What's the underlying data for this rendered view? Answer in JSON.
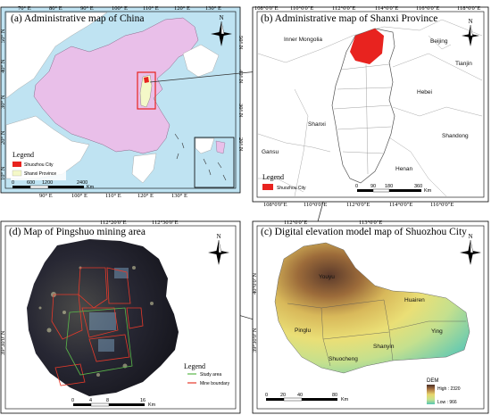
{
  "panels": {
    "a": {
      "title": "(a) Administrative map of China",
      "top_ticks": [
        "70° E",
        "80° E",
        "90° E",
        "100° E",
        "110° E",
        "120° E",
        "130° E"
      ],
      "bottom_ticks": [
        "90° E",
        "100° E",
        "110° E",
        "120° E",
        "130° E"
      ],
      "left_ticks": [
        "50° N",
        "40° N",
        "30° N",
        "20° N",
        "10° N"
      ],
      "right_ticks": [
        "50° N",
        "40° N",
        "30° N",
        "20° N"
      ],
      "legend_title": "Legend",
      "legend_items": [
        "Shuozhou City",
        "Shanxi Province"
      ],
      "scale": [
        "0",
        "600",
        "1200",
        "2400",
        "Km"
      ],
      "north": "N"
    },
    "b": {
      "title": "(b) Administrative map of Shanxi Province",
      "top_ticks": [
        "108°0'0\"E",
        "110°0'0\"E",
        "112°0'0\"E",
        "114°0'0\"E",
        "116°0'0\"E",
        "118°0'0\"E"
      ],
      "bottom_ticks": [
        "108°0'0\"E",
        "110°0'0\"E",
        "112°0'0\"E",
        "114°0'0\"E",
        "116°0'0\"E"
      ],
      "regions": [
        "Inner Mongolia",
        "Beijing",
        "Tianjin",
        "Hebei",
        "Shanxi",
        "Shandong",
        "Gansu",
        "Henan"
      ],
      "legend_title": "Legend",
      "legend_items": [
        "Shuozhou City"
      ],
      "scale": [
        "0",
        "90",
        "180",
        "360",
        "Km"
      ],
      "north": "N"
    },
    "c": {
      "title": "(c) Digital elevation model map of Shuozhou City",
      "top_ticks": [
        "112°0'0\"E",
        "113°0'0\"E"
      ],
      "left_ticks": [
        "40°0'0\"N",
        "39°30'0\"N"
      ],
      "places": [
        "Youyu",
        "Pinglu",
        "Shuocheng",
        "Shanyin",
        "Huairen",
        "Ying"
      ],
      "dem_title": "DEM",
      "dem_high": "High : 2320",
      "dem_low": "Low : 966",
      "scale": [
        "0",
        "20",
        "40",
        "80",
        "Km"
      ],
      "north": "N"
    },
    "d": {
      "title": "(d) Map of Pingshuo mining area",
      "top_ticks": [
        "112°20'0\"E",
        "112°30'0\"E"
      ],
      "left_ticks": [
        "39°30'0\"N"
      ],
      "legend_title": "Legend",
      "legend_items": [
        "Study area",
        "Mine boundary"
      ],
      "scale": [
        "0",
        "4",
        "8",
        "16",
        "Km"
      ],
      "north": "N"
    }
  },
  "colors": {
    "china_fill": "#e9bfe9",
    "ocean": "#bfe3f2",
    "highlight_red": "#e8231f",
    "shanxi_yellow": "#f4f8c8",
    "dem_high": "#5a3a2e",
    "dem_mid": "#e3d46a",
    "dem_low": "#5fc8b0",
    "imagery_dark": "#1a1a22"
  }
}
